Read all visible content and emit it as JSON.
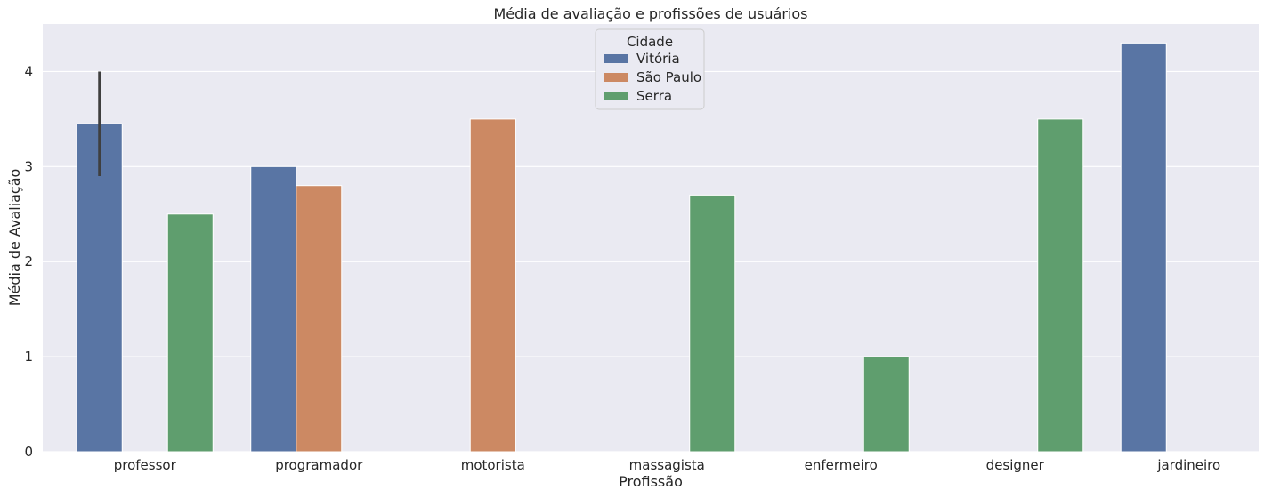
{
  "chart_data": {
    "type": "bar",
    "title": "Média de avaliação e profissões de usuários",
    "xlabel": "Profissão",
    "ylabel": "Média de Avaliação",
    "categories": [
      "professor",
      "programador",
      "motorista",
      "massagista",
      "enfermeiro",
      "designer",
      "jardineiro"
    ],
    "ylim": [
      0,
      4.5
    ],
    "yticks": [
      0,
      1,
      2,
      3,
      4
    ],
    "grid": true,
    "legend": {
      "title": "Cidade",
      "placement": "top-center"
    },
    "series": [
      {
        "name": "Vitória",
        "color": "#5975a4",
        "values": [
          3.45,
          3.0,
          null,
          null,
          null,
          null,
          4.3
        ],
        "error_bars": [
          [
            2.9,
            4.0
          ],
          null,
          null,
          null,
          null,
          null,
          null
        ]
      },
      {
        "name": "São Paulo",
        "color": "#cc8963",
        "values": [
          null,
          2.8,
          3.5,
          null,
          null,
          null,
          null
        ],
        "error_bars": [
          null,
          null,
          null,
          null,
          null,
          null,
          null
        ]
      },
      {
        "name": "Serra",
        "color": "#5f9e6e",
        "values": [
          2.5,
          null,
          null,
          2.7,
          1.0,
          3.5,
          null
        ],
        "error_bars": [
          null,
          null,
          null,
          null,
          null,
          null,
          null
        ]
      }
    ]
  }
}
